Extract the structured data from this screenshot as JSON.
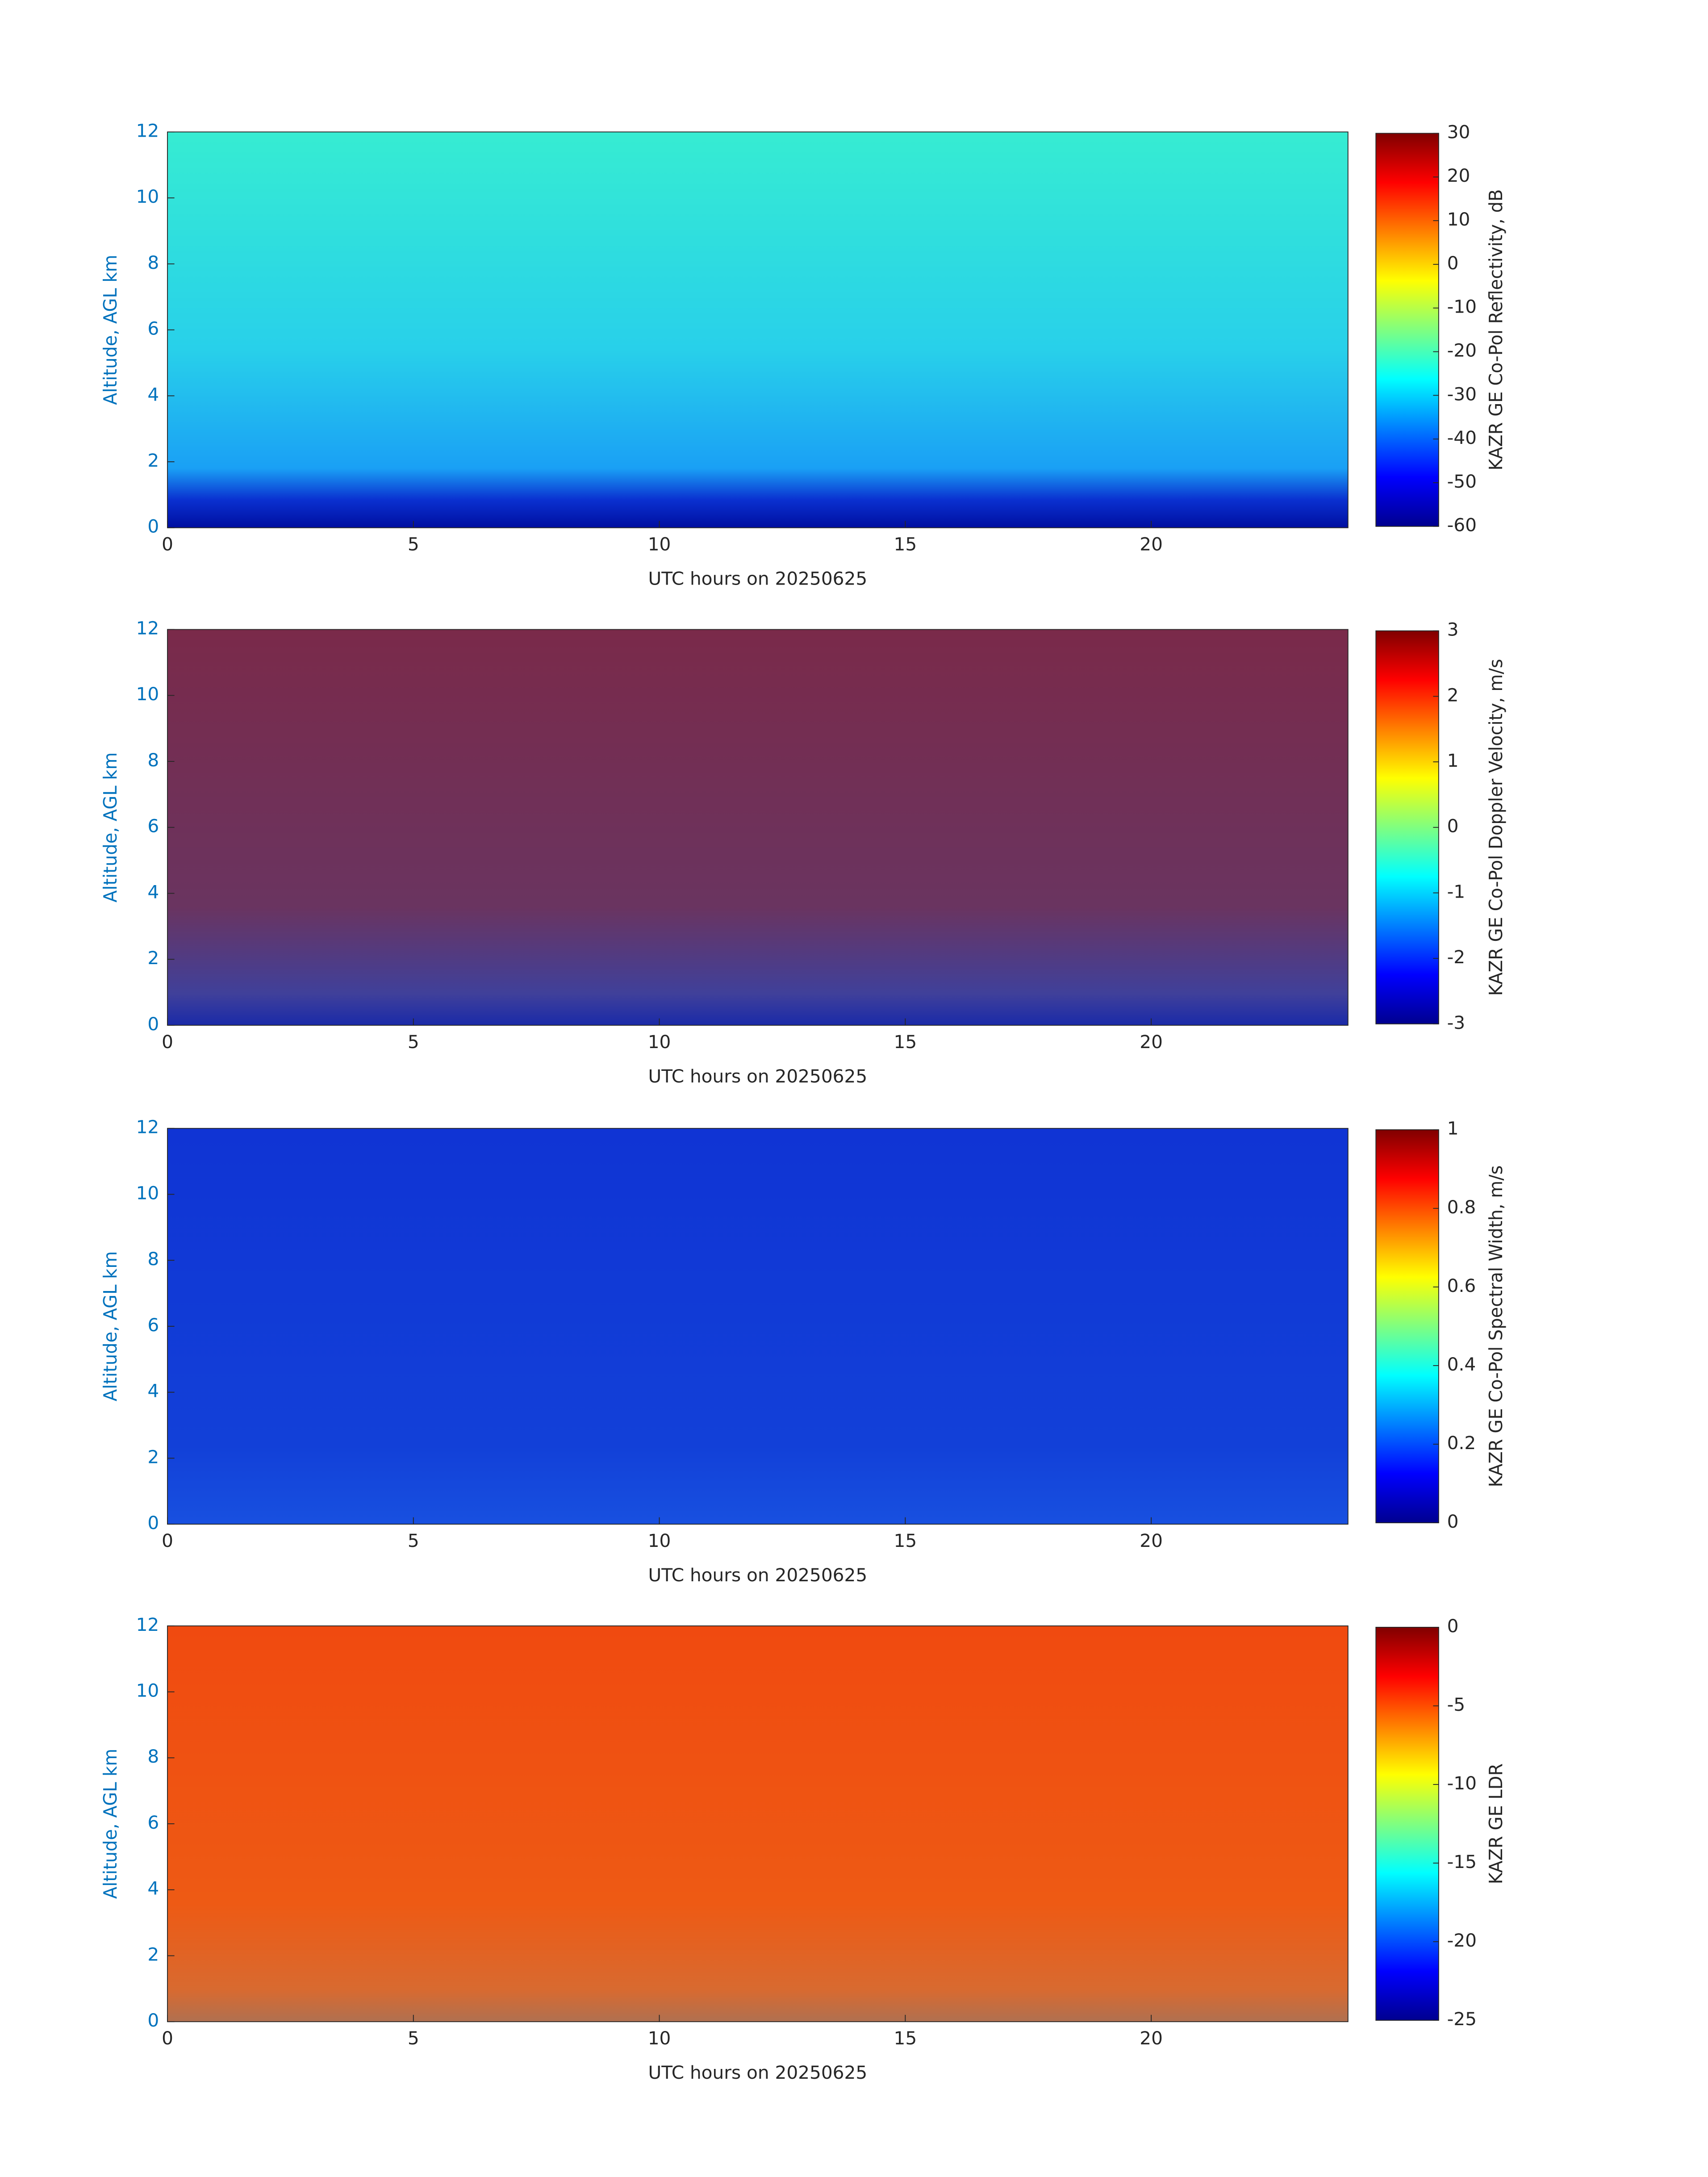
{
  "chart_data": [
    {
      "type": "heatmap",
      "xlabel": "UTC hours on 20250625",
      "ylabel": "Altitude, AGL km",
      "xlim": [
        0,
        24
      ],
      "xticks": [
        0,
        5,
        10,
        15,
        20
      ],
      "ylim": [
        0,
        12
      ],
      "yticks": [
        0,
        2,
        4,
        6,
        8,
        10,
        12
      ],
      "colormap": "jet",
      "colorbar_label": "KAZR GE Co-Pol Reflectivity, dB",
      "clim": [
        -60,
        30
      ],
      "cticks": [
        -60,
        -50,
        -40,
        -30,
        -20,
        -10,
        0,
        10,
        20,
        30
      ]
    },
    {
      "type": "heatmap",
      "xlabel": "UTC hours on 20250625",
      "ylabel": "Altitude, AGL km",
      "xlim": [
        0,
        24
      ],
      "xticks": [
        0,
        5,
        10,
        15,
        20
      ],
      "ylim": [
        0,
        12
      ],
      "yticks": [
        0,
        2,
        4,
        6,
        8,
        10,
        12
      ],
      "colormap": "jet",
      "colorbar_label": "KAZR GE Co-Pol Doppler Velocity, m/s",
      "clim": [
        -3,
        3
      ],
      "cticks": [
        -3,
        -2,
        -1,
        0,
        1,
        2,
        3
      ]
    },
    {
      "type": "heatmap",
      "xlabel": "UTC hours on 20250625",
      "ylabel": "Altitude, AGL km",
      "xlim": [
        0,
        24
      ],
      "xticks": [
        0,
        5,
        10,
        15,
        20
      ],
      "ylim": [
        0,
        12
      ],
      "yticks": [
        0,
        2,
        4,
        6,
        8,
        10,
        12
      ],
      "colormap": "jet",
      "colorbar_label": "KAZR GE Co-Pol Spectral Width, m/s",
      "clim": [
        0,
        1
      ],
      "cticks": [
        0,
        0.2,
        0.4,
        0.6,
        0.8,
        1
      ]
    },
    {
      "type": "heatmap",
      "xlabel": "UTC hours on 20250625",
      "ylabel": "Altitude, AGL km",
      "xlim": [
        0,
        24
      ],
      "xticks": [
        0,
        5,
        10,
        15,
        20
      ],
      "ylim": [
        0,
        12
      ],
      "yticks": [
        0,
        2,
        4,
        6,
        8,
        10,
        12
      ],
      "colormap": "jet",
      "colorbar_label": "KAZR GE LDR",
      "clim": [
        -25,
        0
      ],
      "cticks": [
        -25,
        -20,
        -15,
        -10,
        -5,
        0
      ]
    }
  ]
}
